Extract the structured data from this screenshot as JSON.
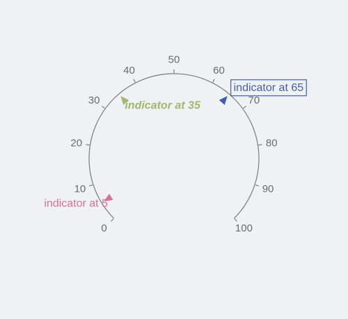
{
  "chart_data": {
    "type": "gauge",
    "scale": {
      "min": 0,
      "max": 100,
      "ticks": [
        0,
        10,
        20,
        30,
        40,
        50,
        60,
        70,
        80,
        90,
        100
      ],
      "tick_labels": [
        "0",
        "10",
        "20",
        "30",
        "40",
        "50",
        "60",
        "70",
        "80",
        "90",
        "100"
      ]
    },
    "indicators": [
      {
        "value": 5,
        "label": "indicator at 5",
        "color": "#d6719a",
        "style": "plain"
      },
      {
        "value": 35,
        "label": "indicator at 35",
        "color": "#9fb86a",
        "style": "bold-italic"
      },
      {
        "value": 65,
        "label": "indicator at 65",
        "color": "#3f5fae",
        "style": "boxed"
      }
    ],
    "axis_color": "#7a7a7a"
  }
}
